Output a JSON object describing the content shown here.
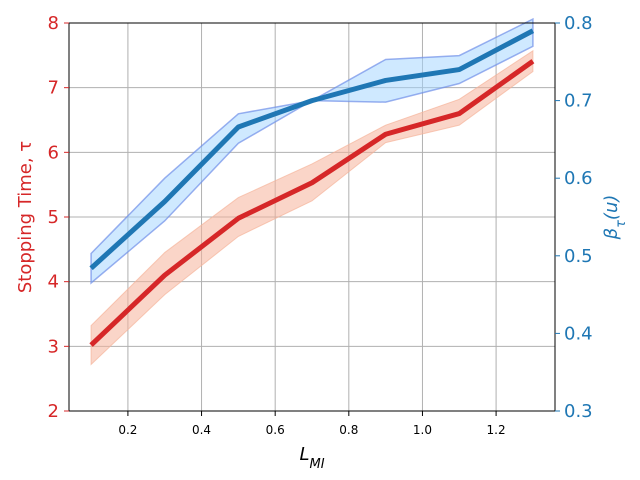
{
  "chart_data": {
    "type": "line",
    "xlabel_base": "L",
    "xlabel_sub": "MI",
    "ylabel_left": "Stopping Time, τ",
    "ylabel_right_base": "β",
    "ylabel_right_sub": "τ",
    "ylabel_right_arg": "(u)",
    "xlim": [
      0.04,
      1.36
    ],
    "ylim_left": [
      2,
      8
    ],
    "ylim_right": [
      0.3,
      0.8
    ],
    "xticks": [
      0.2,
      0.4,
      0.6,
      0.8,
      1.0,
      1.2
    ],
    "xtick_labels": [
      "0.2",
      "0.4",
      "0.6",
      "0.8",
      "1.0",
      "1.2"
    ],
    "yticks_left": [
      2,
      3,
      4,
      5,
      6,
      7,
      8
    ],
    "yticks_left_labels": [
      "2",
      "3",
      "4",
      "5",
      "6",
      "7",
      "8"
    ],
    "yticks_right": [
      0.3,
      0.4,
      0.5,
      0.6,
      0.7,
      0.8
    ],
    "yticks_right_labels": [
      "0.3",
      "0.4",
      "0.5",
      "0.6",
      "0.7",
      "0.8"
    ],
    "grid": true,
    "colors": {
      "left": "#d62728",
      "left_band": "#f5b39a",
      "right": "#1f77b4",
      "right_band": "#9fd4ff",
      "right_band_edge": "#6f8ee8"
    },
    "series": [
      {
        "axis": "left",
        "x": [
          0.1,
          0.3,
          0.5,
          0.7,
          0.9,
          1.1,
          1.3
        ],
        "values": [
          3.02,
          4.1,
          4.98,
          5.53,
          6.28,
          6.6,
          7.41
        ],
        "lower": [
          2.72,
          3.8,
          4.7,
          5.25,
          6.15,
          6.42,
          7.25
        ],
        "upper": [
          3.32,
          4.45,
          5.3,
          5.82,
          6.42,
          6.82,
          7.57
        ]
      },
      {
        "axis": "right",
        "x": [
          0.1,
          0.3,
          0.5,
          0.7,
          0.9,
          1.1,
          1.3
        ],
        "values": [
          0.484,
          0.57,
          0.666,
          0.7,
          0.726,
          0.74,
          0.79
        ],
        "lower": [
          0.465,
          0.545,
          0.645,
          0.7,
          0.698,
          0.722,
          0.77
        ],
        "upper": [
          0.503,
          0.6,
          0.683,
          0.7,
          0.753,
          0.758,
          0.805
        ]
      }
    ]
  }
}
